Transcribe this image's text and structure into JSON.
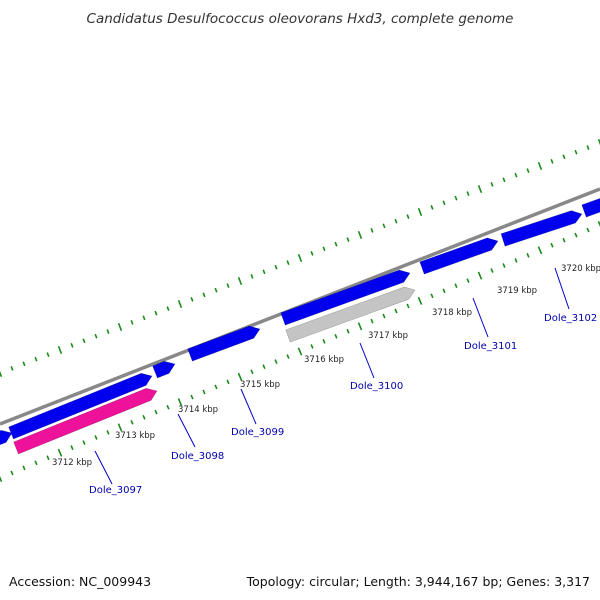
{
  "title": "Candidatus Desulfococcus oleovorans Hxd3, complete genome",
  "footer": {
    "accession": "Accession: NC_009943",
    "summary": "Topology: circular; Length: 3,944,167 bp; Genes: 3,317"
  },
  "colors": {
    "background": "#ffffff",
    "backbone": "#888888",
    "tick": "#1a8a1a",
    "gene_forward": "#0000ee",
    "gene_highlight": "#ee1199",
    "gene_pseudo": "#c4c4c4",
    "label_text": "#0000aa",
    "leader_line": "#0000cc"
  },
  "scale": {
    "tick_labels": [
      "3712 kbp",
      "3713 kbp",
      "3714 kbp",
      "3715 kbp",
      "3716 kbp",
      "3717 kbp",
      "3718 kbp",
      "3719 kbp",
      "3720 kbp"
    ]
  },
  "genes": {
    "labels": [
      "Dole_3097",
      "Dole_3098",
      "Dole_3099",
      "Dole_3100",
      "Dole_3101",
      "Dole_3102"
    ]
  }
}
